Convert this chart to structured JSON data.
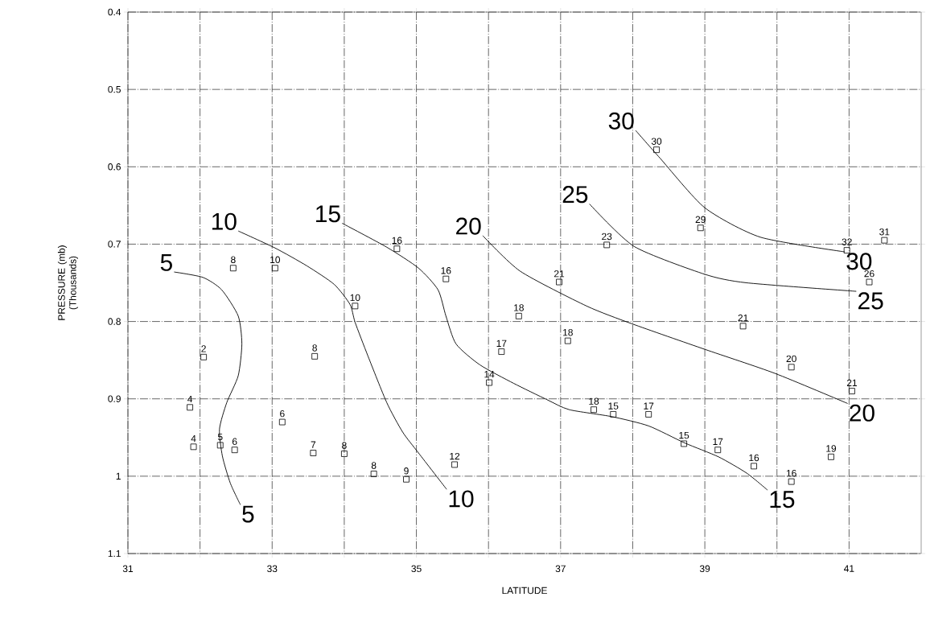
{
  "chart_data": {
    "type": "line",
    "xlabel": "LATITUDE",
    "ylabel": "PRESSURE (mb) (Thousands)",
    "xlim": [
      31,
      42
    ],
    "ylim": [
      1.1,
      0.4
    ],
    "xticks": [
      31,
      {
        "value": 32,
        "label": null
      },
      33,
      {
        "value": 34,
        "label": null
      },
      35,
      {
        "value": 36,
        "label": null
      },
      37,
      {
        "value": 38,
        "label": null
      },
      39,
      {
        "value": 40,
        "label": null
      },
      41
    ],
    "yticks": [
      0.4,
      0.5,
      0.6,
      0.7,
      0.8,
      0.9,
      1,
      1.1
    ],
    "grid": true,
    "series": [
      {
        "type": "scatter",
        "marker": "square",
        "color": "#000000",
        "x": [
          32.46,
          33.04,
          34.73,
          35.41,
          34.15,
          32.05,
          31.86,
          31.91,
          32.28,
          32.48,
          33.14,
          33.59,
          33.57,
          34.0,
          34.41,
          34.86,
          35.53,
          36.01,
          36.18,
          36.42,
          37.1,
          36.98,
          37.64,
          38.33,
          38.94,
          39.53,
          40.2,
          41.04,
          37.46,
          37.73,
          38.22,
          38.71,
          39.18,
          39.68,
          40.2,
          40.75,
          40.97,
          41.28,
          41.49
        ],
        "values": [
          0.731,
          0.731,
          0.706,
          0.745,
          0.78,
          0.846,
          0.911,
          0.962,
          0.96,
          0.966,
          0.93,
          0.845,
          0.97,
          0.971,
          0.997,
          1.004,
          0.985,
          0.879,
          0.839,
          0.793,
          0.825,
          0.749,
          0.701,
          0.578,
          0.679,
          0.806,
          0.859,
          0.89,
          0.914,
          0.92,
          0.92,
          0.958,
          0.966,
          0.987,
          1.007,
          0.975,
          0.708,
          0.749,
          0.695
        ]
      },
      {
        "name": "5",
        "color": "#000000",
        "x": [
          31.64,
          32.04,
          32.3,
          32.53,
          32.58,
          32.53,
          32.37,
          32.27,
          32.31,
          32.42,
          32.56
        ],
        "values": [
          0.736,
          0.743,
          0.759,
          0.793,
          0.829,
          0.87,
          0.905,
          0.939,
          0.974,
          1.009,
          1.037
        ]
      },
      {
        "name": "10",
        "color": "#000000",
        "x": [
          32.53,
          33.04,
          33.48,
          33.86,
          34.08,
          34.15,
          34.33,
          34.59,
          34.81,
          35.03,
          35.42
        ],
        "values": [
          0.683,
          0.705,
          0.728,
          0.752,
          0.778,
          0.801,
          0.845,
          0.905,
          0.943,
          0.97,
          1.017
        ]
      },
      {
        "name": "15",
        "color": "#000000",
        "x": [
          33.97,
          34.59,
          35.03,
          35.3,
          35.41,
          35.55,
          35.88,
          36.35,
          36.81,
          37.12,
          37.71,
          38.22,
          38.72,
          39.19,
          39.58,
          39.87
        ],
        "values": [
          0.673,
          0.704,
          0.731,
          0.759,
          0.793,
          0.829,
          0.856,
          0.88,
          0.901,
          0.914,
          0.923,
          0.935,
          0.957,
          0.975,
          0.996,
          1.018
        ]
      },
      {
        "name": "20",
        "color": "#000000",
        "x": [
          35.92,
          36.44,
          37.36,
          37.99,
          39.0,
          39.97,
          40.98
        ],
        "values": [
          0.689,
          0.735,
          0.78,
          0.803,
          0.836,
          0.867,
          0.906
        ]
      },
      {
        "name": "25",
        "color": "#000000",
        "x": [
          37.4,
          38.02,
          39.0,
          39.58,
          41.1
        ],
        "values": [
          0.648,
          0.703,
          0.739,
          0.75,
          0.761
        ]
      },
      {
        "name": "30",
        "color": "#000000",
        "x": [
          38.04,
          38.38,
          39.0,
          39.77,
          40.94
        ],
        "values": [
          0.553,
          0.589,
          0.653,
          0.691,
          0.71
        ]
      }
    ],
    "annotations": [
      {
        "text": "8",
        "x": 32.46,
        "y": 0.731
      },
      {
        "text": "10",
        "x": 33.04,
        "y": 0.731
      },
      {
        "text": "16",
        "x": 34.73,
        "y": 0.706
      },
      {
        "text": "16",
        "x": 35.41,
        "y": 0.745
      },
      {
        "text": "10",
        "x": 34.15,
        "y": 0.78
      },
      {
        "text": "2",
        "x": 32.05,
        "y": 0.846
      },
      {
        "text": "4",
        "x": 31.86,
        "y": 0.911
      },
      {
        "text": "4",
        "x": 31.91,
        "y": 0.962
      },
      {
        "text": "5",
        "x": 32.28,
        "y": 0.96
      },
      {
        "text": "6",
        "x": 32.48,
        "y": 0.966
      },
      {
        "text": "6",
        "x": 33.14,
        "y": 0.93
      },
      {
        "text": "8",
        "x": 33.59,
        "y": 0.845
      },
      {
        "text": "7",
        "x": 33.57,
        "y": 0.97
      },
      {
        "text": "8",
        "x": 34.0,
        "y": 0.971
      },
      {
        "text": "8",
        "x": 34.41,
        "y": 0.997
      },
      {
        "text": "9",
        "x": 34.86,
        "y": 1.004
      },
      {
        "text": "12",
        "x": 35.53,
        "y": 0.985
      },
      {
        "text": "14",
        "x": 36.01,
        "y": 0.879
      },
      {
        "text": "17",
        "x": 36.18,
        "y": 0.839
      },
      {
        "text": "18",
        "x": 36.42,
        "y": 0.793
      },
      {
        "text": "18",
        "x": 37.1,
        "y": 0.825
      },
      {
        "text": "21",
        "x": 36.98,
        "y": 0.749
      },
      {
        "text": "23",
        "x": 37.64,
        "y": 0.701
      },
      {
        "text": "30",
        "x": 38.33,
        "y": 0.578
      },
      {
        "text": "29",
        "x": 38.94,
        "y": 0.679
      },
      {
        "text": "21",
        "x": 39.53,
        "y": 0.806
      },
      {
        "text": "20",
        "x": 40.2,
        "y": 0.859
      },
      {
        "text": "21",
        "x": 41.04,
        "y": 0.89
      },
      {
        "text": "18",
        "x": 37.46,
        "y": 0.914
      },
      {
        "text": "15",
        "x": 37.73,
        "y": 0.92
      },
      {
        "text": "17",
        "x": 38.22,
        "y": 0.92
      },
      {
        "text": "15",
        "x": 38.71,
        "y": 0.958
      },
      {
        "text": "17",
        "x": 39.18,
        "y": 0.966
      },
      {
        "text": "16",
        "x": 39.68,
        "y": 0.987
      },
      {
        "text": "16",
        "x": 40.2,
        "y": 1.007
      },
      {
        "text": "19",
        "x": 40.75,
        "y": 0.975
      },
      {
        "text": "32",
        "x": 40.97,
        "y": 0.708
      },
      {
        "text": "26",
        "x": 41.28,
        "y": 0.749
      },
      {
        "text": "31",
        "x": 41.49,
        "y": 0.695
      }
    ]
  }
}
